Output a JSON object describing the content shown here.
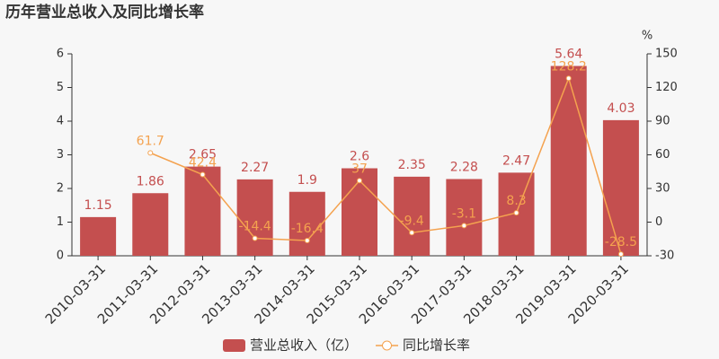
{
  "chart_data": {
    "type": "bar",
    "title": "历年营业总收入及同比增长率",
    "y2label": "%",
    "categories": [
      "2010-03-31",
      "2011-03-31",
      "2012-03-31",
      "2013-03-31",
      "2014-03-31",
      "2015-03-31",
      "2016-03-31",
      "2017-03-31",
      "2018-03-31",
      "2019-03-31",
      "2020-03-31"
    ],
    "series": [
      {
        "name": "营业总收入（亿）",
        "color": "#c44f4f",
        "values": [
          1.15,
          1.86,
          2.65,
          2.27,
          1.9,
          2.6,
          2.35,
          2.28,
          2.47,
          5.64,
          4.03
        ]
      },
      {
        "name": "同比增长率",
        "type": "line",
        "axis": "y2",
        "color": "#f4a24f",
        "values": [
          null,
          61.7,
          42.4,
          -14.4,
          -16.4,
          37,
          -9.4,
          -3.1,
          8.3,
          128.2,
          -28.5
        ]
      }
    ],
    "ylim": [
      0,
      6
    ],
    "yticks": [
      0,
      1,
      2,
      3,
      4,
      5,
      6
    ],
    "y2lim": [
      -30,
      150
    ],
    "y2ticks": [
      -30,
      0,
      30,
      60,
      90,
      120,
      150
    ],
    "grid": false,
    "legend": "bottom"
  }
}
